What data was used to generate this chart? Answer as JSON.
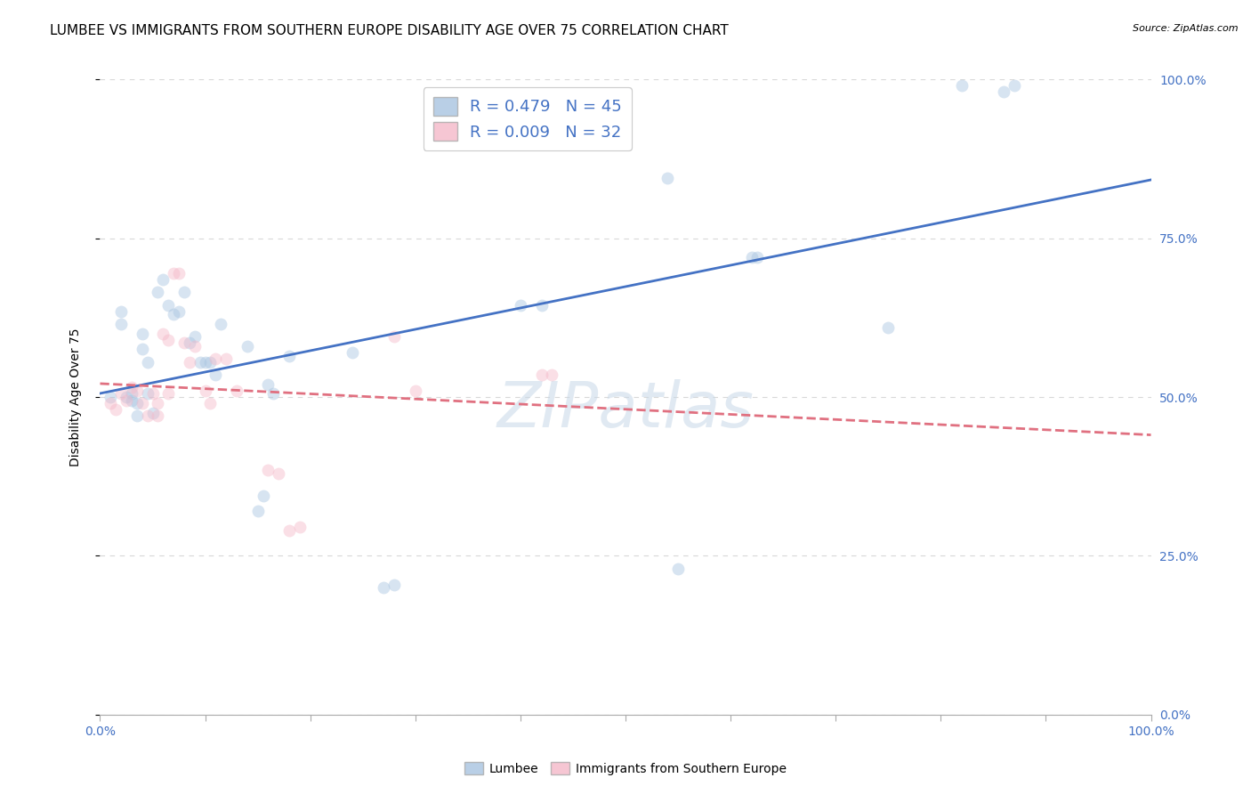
{
  "title": "LUMBEE VS IMMIGRANTS FROM SOUTHERN EUROPE DISABILITY AGE OVER 75 CORRELATION CHART",
  "source": "Source: ZipAtlas.com",
  "ylabel": "Disability Age Over 75",
  "watermark": "ZIPatlas",
  "lumbee_R": 0.479,
  "lumbee_N": 45,
  "immig_R": 0.009,
  "immig_N": 32,
  "xlim": [
    0.0,
    1.0
  ],
  "ylim": [
    0.0,
    1.0
  ],
  "yticks": [
    0.0,
    0.25,
    0.5,
    0.75,
    1.0
  ],
  "yticklabels_right": [
    "0.0%",
    "25.0%",
    "50.0%",
    "75.0%",
    "100.0%"
  ],
  "xtick_positions": [
    0.0,
    0.1,
    0.2,
    0.3,
    0.4,
    0.5,
    0.6,
    0.7,
    0.8,
    0.9,
    1.0
  ],
  "xlabels_outer": {
    "0.0": "0.0%",
    "1.0": "100.0%"
  },
  "lumbee_color": "#a8c4e0",
  "immig_color": "#f4b8c8",
  "lumbee_line_color": "#4472c4",
  "immig_line_color": "#e07080",
  "grid_color": "#d8d8d8",
  "lumbee_x": [
    0.01,
    0.02,
    0.02,
    0.025,
    0.03,
    0.03,
    0.035,
    0.035,
    0.04,
    0.04,
    0.045,
    0.045,
    0.05,
    0.055,
    0.06,
    0.065,
    0.07,
    0.075,
    0.08,
    0.085,
    0.09,
    0.095,
    0.1,
    0.105,
    0.11,
    0.115,
    0.14,
    0.15,
    0.155,
    0.16,
    0.165,
    0.18,
    0.24,
    0.27,
    0.28,
    0.4,
    0.42,
    0.54,
    0.55,
    0.62,
    0.625,
    0.75,
    0.82,
    0.86,
    0.87
  ],
  "lumbee_y": [
    0.5,
    0.635,
    0.615,
    0.5,
    0.505,
    0.495,
    0.49,
    0.47,
    0.6,
    0.575,
    0.555,
    0.505,
    0.475,
    0.665,
    0.685,
    0.645,
    0.63,
    0.635,
    0.665,
    0.585,
    0.595,
    0.555,
    0.555,
    0.555,
    0.535,
    0.615,
    0.58,
    0.32,
    0.345,
    0.52,
    0.505,
    0.565,
    0.57,
    0.2,
    0.205,
    0.645,
    0.645,
    0.845,
    0.23,
    0.72,
    0.72,
    0.61,
    0.99,
    0.98,
    0.99
  ],
  "immig_x": [
    0.01,
    0.015,
    0.02,
    0.025,
    0.03,
    0.035,
    0.04,
    0.045,
    0.05,
    0.055,
    0.055,
    0.06,
    0.065,
    0.065,
    0.07,
    0.075,
    0.08,
    0.085,
    0.09,
    0.1,
    0.105,
    0.11,
    0.12,
    0.13,
    0.16,
    0.17,
    0.18,
    0.19,
    0.28,
    0.3,
    0.42,
    0.43
  ],
  "immig_y": [
    0.49,
    0.48,
    0.505,
    0.495,
    0.515,
    0.51,
    0.49,
    0.47,
    0.505,
    0.49,
    0.47,
    0.6,
    0.59,
    0.505,
    0.695,
    0.695,
    0.585,
    0.555,
    0.58,
    0.51,
    0.49,
    0.56,
    0.56,
    0.51,
    0.385,
    0.38,
    0.29,
    0.295,
    0.595,
    0.51,
    0.535,
    0.535
  ],
  "title_fontsize": 11,
  "axis_label_fontsize": 10,
  "tick_fontsize": 10,
  "legend_fontsize": 13,
  "marker_size": 100,
  "marker_alpha": 0.45,
  "line_width": 2.0
}
